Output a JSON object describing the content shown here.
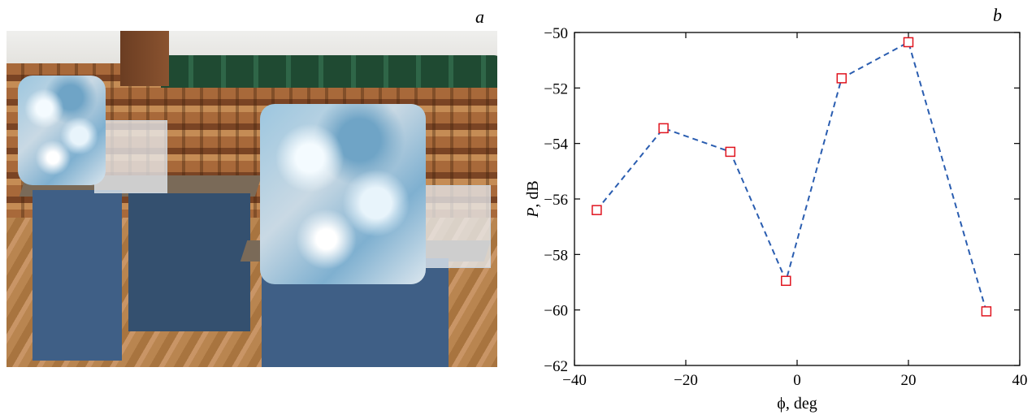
{
  "panels": {
    "left_label": "a",
    "right_label": "b"
  },
  "chart_data": {
    "type": "scatter",
    "xlabel": "ϕ, deg",
    "ylabel_italic": "P",
    "ylabel_rest": ", dB",
    "xlim": [
      -40,
      40
    ],
    "ylim": [
      -62,
      -50
    ],
    "xticks": [
      -40,
      -20,
      0,
      20,
      40
    ],
    "yticks": [
      -50,
      -52,
      -54,
      -56,
      -58,
      -60,
      -62
    ],
    "xtick_labels": [
      "−40",
      "−20",
      "0",
      "20",
      "40"
    ],
    "ytick_labels": [
      "−50",
      "−52",
      "−54",
      "−56",
      "−58",
      "−60",
      "−62"
    ],
    "grid": false,
    "series": [
      {
        "line_color": "#2a5db0",
        "line_style": "dashed",
        "marker": "square",
        "marker_color": "#e0141e",
        "x": [
          -36,
          -24,
          -12,
          -2,
          8,
          20,
          34
        ],
        "y": [
          -56.4,
          -53.45,
          -54.3,
          -58.95,
          -51.65,
          -50.35,
          -60.05
        ]
      }
    ]
  }
}
